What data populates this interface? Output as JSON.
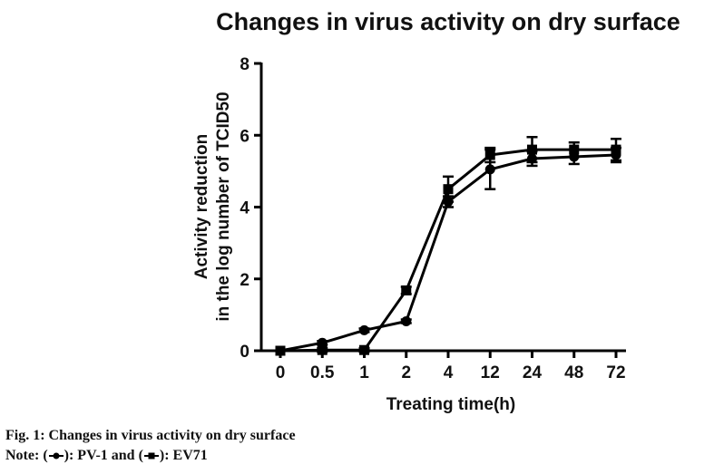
{
  "chart_data": {
    "type": "line",
    "title": "Changes in virus activity on dry surface",
    "xlabel": "Treating time(h)",
    "ylabel_line1": "Activity reduction",
    "ylabel_line2": "in the log number of TCID50",
    "categories": [
      "0",
      "0.5",
      "1",
      "2",
      "4",
      "12",
      "24",
      "48",
      "72"
    ],
    "ylim": [
      0,
      8
    ],
    "yticks": [
      0,
      2,
      4,
      6,
      8
    ],
    "grid": false,
    "series": [
      {
        "marker": "circle",
        "color": "#000000",
        "values": [
          0,
          0.22,
          0.57,
          0.82,
          4.15,
          5.05,
          5.35,
          5.4,
          5.45
        ],
        "errors": [
          0,
          0.05,
          0.05,
          0.05,
          0.15,
          0.55,
          0.2,
          0.2,
          0.2
        ]
      },
      {
        "marker": "square",
        "color": "#000000",
        "values": [
          0,
          0.02,
          0.02,
          1.68,
          4.5,
          5.45,
          5.6,
          5.6,
          5.6
        ],
        "errors": [
          0,
          0.05,
          0.05,
          0.1,
          0.35,
          0.2,
          0.35,
          0.2,
          0.3
        ]
      }
    ]
  },
  "caption": {
    "figure": "Fig. 1: Changes in virus activity on dry surface",
    "note_prefix": "Note: (",
    "pv1_text": "): PV-1 and (",
    "ev71_text": "): EV71"
  }
}
